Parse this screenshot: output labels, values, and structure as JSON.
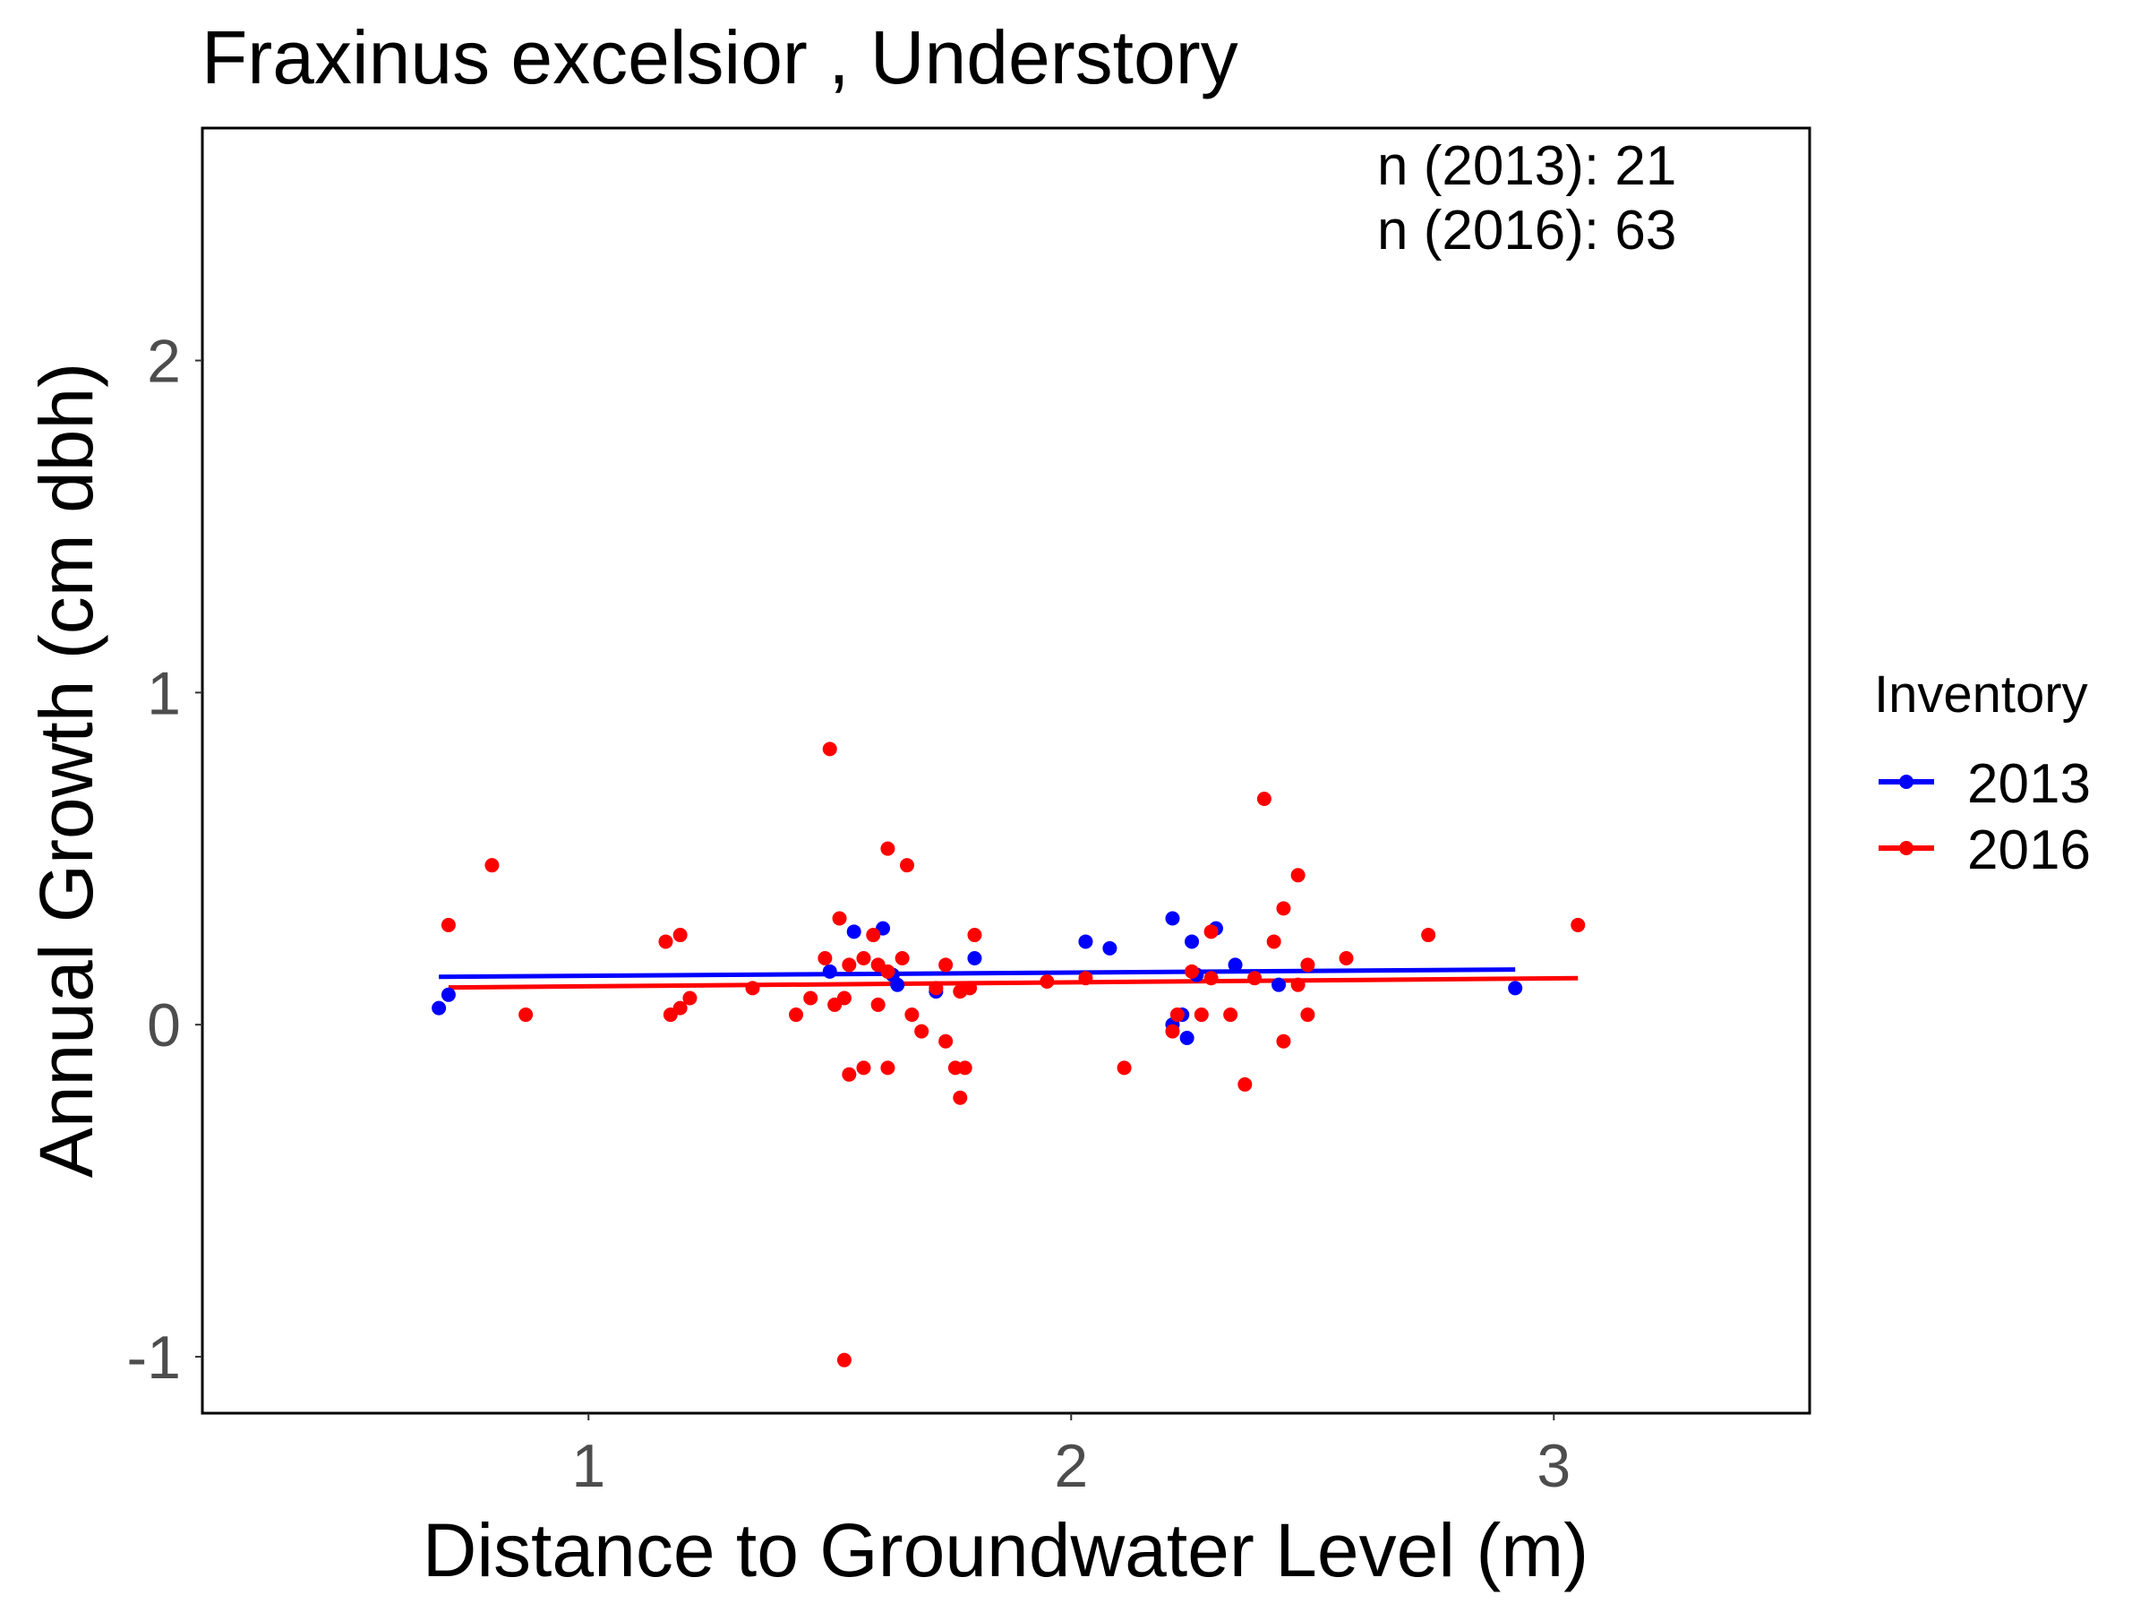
{
  "chart_data": {
    "type": "scatter",
    "title": "Fraxinus excelsior ,  Understory",
    "xlabel": "Distance to Groundwater Level (m)",
    "ylabel": "Annual Growth (cm dbh)",
    "xlim": [
      0.2,
      3.53
    ],
    "ylim": [
      -1.17,
      2.7
    ],
    "x_ticks": [
      1,
      2,
      3
    ],
    "y_ticks": [
      -1,
      0,
      1,
      2
    ],
    "x_tick_labels": [
      "1",
      "2",
      "3"
    ],
    "y_tick_labels": [
      "-1",
      "0",
      "1",
      "2"
    ],
    "grid": false,
    "legend_title": "Inventory",
    "legend_position": "right",
    "annotations": [
      "n (2013):  21",
      "n (2016):  63"
    ],
    "series": [
      {
        "name": "2013",
        "color": "#0000ff",
        "points": [
          [
            0.69,
            0.05
          ],
          [
            0.71,
            0.09
          ],
          [
            1.5,
            0.16
          ],
          [
            1.55,
            0.28
          ],
          [
            1.61,
            0.29
          ],
          [
            1.63,
            0.15
          ],
          [
            1.64,
            0.12
          ],
          [
            1.72,
            0.1
          ],
          [
            1.8,
            0.2
          ],
          [
            2.03,
            0.25
          ],
          [
            2.08,
            0.23
          ],
          [
            2.21,
            0.32
          ],
          [
            2.24,
            -0.04
          ],
          [
            2.25,
            0.25
          ],
          [
            2.21,
            0.0
          ],
          [
            2.3,
            0.29
          ],
          [
            2.34,
            0.18
          ],
          [
            2.43,
            0.12
          ],
          [
            2.92,
            0.11
          ],
          [
            2.23,
            0.03
          ],
          [
            2.26,
            0.15
          ]
        ],
        "fit": {
          "x": [
            0.69,
            2.92
          ],
          "y": [
            0.144,
            0.166
          ]
        }
      },
      {
        "name": "2016",
        "color": "#ff0000",
        "points": [
          [
            0.71,
            0.3
          ],
          [
            0.8,
            0.48
          ],
          [
            0.87,
            0.03
          ],
          [
            1.16,
            0.25
          ],
          [
            1.17,
            0.03
          ],
          [
            1.19,
            0.05
          ],
          [
            1.19,
            0.27
          ],
          [
            1.21,
            0.08
          ],
          [
            1.34,
            0.11
          ],
          [
            1.43,
            0.03
          ],
          [
            1.46,
            0.08
          ],
          [
            1.49,
            0.2
          ],
          [
            1.5,
            0.83
          ],
          [
            1.51,
            0.06
          ],
          [
            1.52,
            0.32
          ],
          [
            1.53,
            -1.01
          ],
          [
            1.53,
            0.08
          ],
          [
            1.54,
            -0.15
          ],
          [
            1.54,
            0.18
          ],
          [
            1.57,
            0.2
          ],
          [
            1.57,
            -0.13
          ],
          [
            1.59,
            0.27
          ],
          [
            1.6,
            0.06
          ],
          [
            1.6,
            0.18
          ],
          [
            1.62,
            0.16
          ],
          [
            1.62,
            0.53
          ],
          [
            1.62,
            -0.13
          ],
          [
            1.65,
            0.2
          ],
          [
            1.66,
            0.48
          ],
          [
            1.67,
            0.03
          ],
          [
            1.69,
            -0.02
          ],
          [
            1.72,
            0.11
          ],
          [
            1.74,
            -0.05
          ],
          [
            1.74,
            0.18
          ],
          [
            1.76,
            -0.13
          ],
          [
            1.77,
            -0.22
          ],
          [
            1.77,
            0.1
          ],
          [
            1.78,
            -0.13
          ],
          [
            1.79,
            0.11
          ],
          [
            1.8,
            0.27
          ],
          [
            2.11,
            -0.13
          ],
          [
            2.21,
            -0.02
          ],
          [
            2.22,
            0.03
          ],
          [
            2.25,
            0.16
          ],
          [
            2.27,
            0.03
          ],
          [
            2.29,
            0.14
          ],
          [
            2.29,
            0.28
          ],
          [
            2.33,
            0.03
          ],
          [
            2.36,
            -0.18
          ],
          [
            2.4,
            0.68
          ],
          [
            2.42,
            0.25
          ],
          [
            2.44,
            0.35
          ],
          [
            2.44,
            -0.05
          ],
          [
            2.47,
            0.45
          ],
          [
            2.49,
            0.18
          ],
          [
            2.49,
            0.03
          ],
          [
            2.57,
            0.2
          ],
          [
            2.74,
            0.27
          ],
          [
            3.05,
            0.3
          ],
          [
            2.47,
            0.12
          ],
          [
            2.38,
            0.14
          ],
          [
            2.03,
            0.14
          ],
          [
            1.95,
            0.13
          ]
        ],
        "fit": {
          "x": [
            0.71,
            3.05
          ],
          "y": [
            0.112,
            0.14
          ]
        }
      }
    ]
  }
}
